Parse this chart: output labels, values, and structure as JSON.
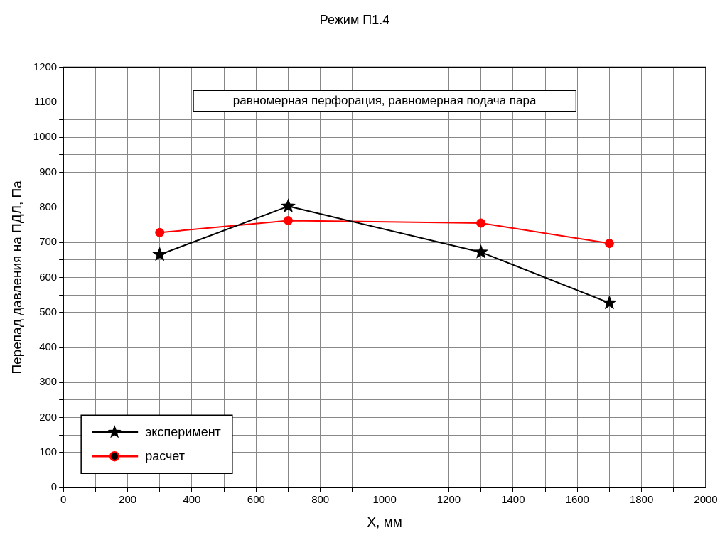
{
  "chart_data": {
    "type": "line",
    "title": "Режим П1.4",
    "xlabel": "X, мм",
    "ylabel": "Перепад давления на ПДЛ, Па",
    "annotations": [
      "равномерная перфорация, равномерная подача пара"
    ],
    "x": [
      300,
      700,
      1300,
      1700
    ],
    "series": [
      {
        "name": "эксперимент",
        "color": "#000000",
        "marker": "star",
        "values": [
          665,
          803,
          672,
          527
        ]
      },
      {
        "name": "расчет",
        "color": "#ff0000",
        "marker": "circle",
        "values": [
          728,
          762,
          755,
          697
        ]
      }
    ],
    "xlim": [
      0,
      2000
    ],
    "xticks": [
      0,
      {
        "value": 100,
        "label": null
      },
      200,
      {
        "value": 300,
        "label": null
      },
      400,
      {
        "value": 500,
        "label": null
      },
      600,
      {
        "value": 700,
        "label": null
      },
      800,
      {
        "value": 900,
        "label": null
      },
      1000,
      {
        "value": 1100,
        "label": null
      },
      1200,
      {
        "value": 1300,
        "label": null
      },
      1400,
      {
        "value": 1500,
        "label": null
      },
      1600,
      {
        "value": 1700,
        "label": null
      },
      1800,
      {
        "value": 1900,
        "label": null
      },
      2000
    ],
    "ylim": [
      0,
      1200
    ],
    "yticks": [
      0,
      {
        "value": 50,
        "label": null
      },
      100,
      {
        "value": 150,
        "label": null
      },
      200,
      {
        "value": 250,
        "label": null
      },
      300,
      {
        "value": 350,
        "label": null
      },
      400,
      {
        "value": 450,
        "label": null
      },
      500,
      {
        "value": 550,
        "label": null
      },
      600,
      {
        "value": 650,
        "label": null
      },
      700,
      {
        "value": 750,
        "label": null
      },
      800,
      {
        "value": 850,
        "label": null
      },
      900,
      {
        "value": 950,
        "label": null
      },
      1000,
      {
        "value": 1050,
        "label": null
      },
      1100,
      {
        "value": 1150,
        "label": null
      },
      1200
    ],
    "grid": true,
    "legend": "bottom left",
    "line_style": "solid"
  }
}
